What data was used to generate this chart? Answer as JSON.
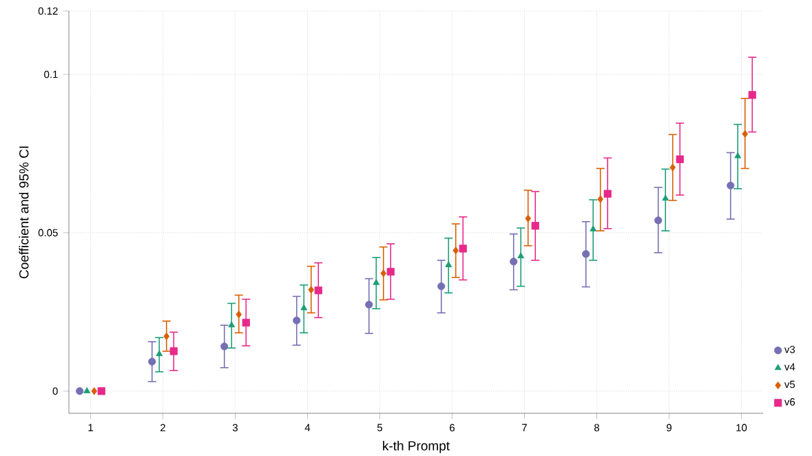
{
  "chart_data": {
    "type": "scatter",
    "xlabel": "k-th Prompt",
    "ylabel": "Coefficient and 95% CI",
    "xlim": [
      0.7,
      10.3
    ],
    "ylim": [
      -0.007,
      0.12
    ],
    "xticks": [
      1,
      2,
      3,
      4,
      5,
      6,
      7,
      8,
      9,
      10
    ],
    "yticks": [
      0,
      0.05,
      0.1,
      0.12
    ],
    "grid": true,
    "legend": "bottom right",
    "series": [
      {
        "name": "v3",
        "color": "#7570b3",
        "marker": "circle",
        "x": [
          0.85,
          1.85,
          2.85,
          3.85,
          4.85,
          5.85,
          6.85,
          7.85,
          8.85,
          9.85
        ],
        "values": [
          0,
          0.0093,
          0.0141,
          0.0223,
          0.0273,
          0.0331,
          0.0409,
          0.0433,
          0.0539,
          0.0649
        ],
        "errors": [
          null,
          [
            0.003,
            0.0156
          ],
          [
            0.0074,
            0.0208
          ],
          [
            0.0145,
            0.0299
          ],
          [
            0.0182,
            0.0355
          ],
          [
            0.0247,
            0.0413
          ],
          [
            0.032,
            0.0496
          ],
          [
            0.0329,
            0.0535
          ],
          [
            0.0437,
            0.0643
          ],
          [
            0.0543,
            0.0753
          ]
        ]
      },
      {
        "name": "v4",
        "color": "#1b9e77",
        "marker": "triangle",
        "x": [
          0.95,
          1.95,
          2.95,
          3.95,
          4.95,
          5.95,
          6.95,
          7.95,
          8.95,
          9.95
        ],
        "values": [
          0,
          0.0117,
          0.0208,
          0.0262,
          0.0342,
          0.0398,
          0.0426,
          0.0511,
          0.0608,
          0.0742
        ],
        "errors": [
          null,
          [
            0.0061,
            0.0169
          ],
          [
            0.0136,
            0.0277
          ],
          [
            0.0184,
            0.0335
          ],
          [
            0.026,
            0.0422
          ],
          [
            0.031,
            0.0483
          ],
          [
            0.0331,
            0.0515
          ],
          [
            0.0413,
            0.0604
          ],
          [
            0.0506,
            0.0701
          ],
          [
            0.0639,
            0.0842
          ]
        ]
      },
      {
        "name": "v5",
        "color": "#d95f02",
        "marker": "diamond",
        "x": [
          1.05,
          2.05,
          3.05,
          4.05,
          5.05,
          6.05,
          7.05,
          8.05,
          9.05,
          10.05
        ],
        "values": [
          0,
          0.0173,
          0.0242,
          0.032,
          0.0372,
          0.0444,
          0.0545,
          0.0606,
          0.0706,
          0.0812
        ],
        "errors": [
          null,
          [
            0.0126,
            0.0221
          ],
          [
            0.0184,
            0.0303
          ],
          [
            0.0247,
            0.0394
          ],
          [
            0.0288,
            0.0455
          ],
          [
            0.0359,
            0.0528
          ],
          [
            0.0459,
            0.0634
          ],
          [
            0.0506,
            0.0703
          ],
          [
            0.0602,
            0.081
          ],
          [
            0.0703,
            0.0924
          ]
        ]
      },
      {
        "name": "v6",
        "color": "#e7298a",
        "marker": "square",
        "x": [
          1.15,
          2.15,
          3.15,
          4.15,
          5.15,
          6.15,
          7.15,
          8.15,
          9.15,
          10.15
        ],
        "values": [
          0,
          0.0126,
          0.0216,
          0.0318,
          0.0377,
          0.045,
          0.0522,
          0.0623,
          0.0732,
          0.0935
        ],
        "errors": [
          null,
          [
            0.0065,
            0.0186
          ],
          [
            0.0143,
            0.029
          ],
          [
            0.0232,
            0.0405
          ],
          [
            0.029,
            0.0465
          ],
          [
            0.0351,
            0.055
          ],
          [
            0.0413,
            0.063
          ],
          [
            0.0513,
            0.0736
          ],
          [
            0.0619,
            0.0846
          ],
          [
            0.0818,
            0.1054
          ]
        ]
      }
    ]
  }
}
